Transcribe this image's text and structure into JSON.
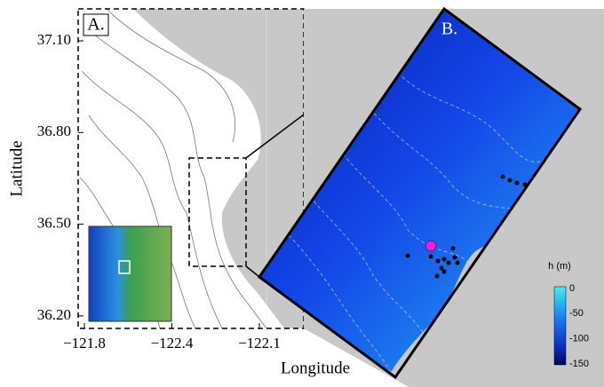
{
  "panel_a": {
    "label": "A.",
    "ylabel": "Latitude",
    "xlabel": "Longitude",
    "ytick_labels": [
      "37.10",
      "36.80",
      "36.50",
      "36.20"
    ],
    "xtick_labels": [
      "−121.8",
      "−122.4",
      "−122.1"
    ]
  },
  "panel_b": {
    "label": "B.",
    "colorbar_title": "h (m)",
    "colorbar_tick_labels": [
      "0",
      "-50",
      "-100",
      "-150"
    ]
  }
}
